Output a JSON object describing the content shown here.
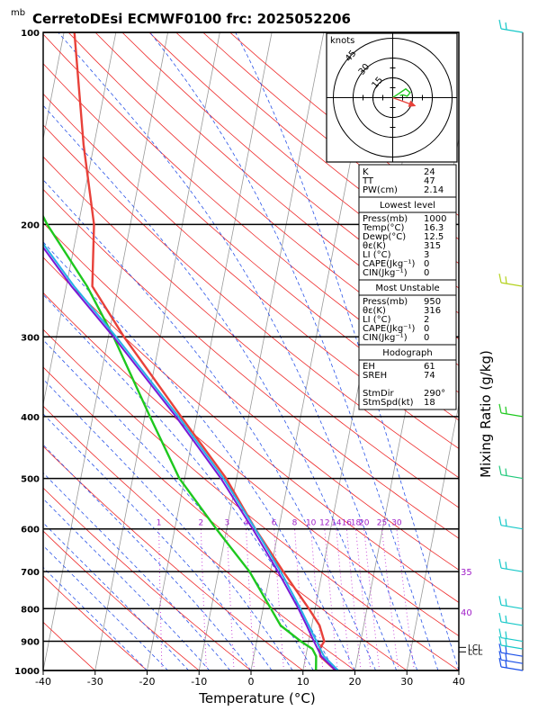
{
  "chart_data": {
    "type": "line",
    "title": "CerretoDEsi ECMWF0100  frc: 2025052206",
    "pressure_unit": "mb",
    "xlabel": "Temperature (°C)",
    "ylabel": "Mixing Ratio (g/kg)",
    "xlim": [
      -40,
      40
    ],
    "ylim": [
      1000,
      100
    ],
    "y_scale": "log",
    "x_ticks": [
      "-40",
      "-30",
      "-20",
      "-10",
      "0",
      "10",
      "20",
      "30",
      "40"
    ],
    "y_ticks": [
      "100",
      "200",
      "300",
      "400",
      "500",
      "600",
      "700",
      "800",
      "900",
      "1000"
    ],
    "mixing_ratio_labels": [
      "1",
      "2",
      "3",
      "4",
      "6",
      "8",
      "10",
      "12",
      "14",
      "16",
      "18",
      "20",
      "25",
      "30"
    ],
    "theta_e_labels": [
      "35",
      "40"
    ],
    "lcl_labels": [
      "LCL",
      "LCL"
    ],
    "series": [
      {
        "key": "temperature",
        "color": "#e8413a",
        "points": [
          [
            1000,
            16.3
          ],
          [
            950,
            12.8
          ],
          [
            925,
            12.4
          ],
          [
            900,
            13.0
          ],
          [
            850,
            11.5
          ],
          [
            800,
            8.8
          ],
          [
            700,
            2.5
          ],
          [
            600,
            -4.5
          ],
          [
            500,
            -12
          ],
          [
            400,
            -23
          ],
          [
            300,
            -37
          ],
          [
            250,
            -45
          ],
          [
            200,
            -47
          ],
          [
            150,
            -52
          ],
          [
            100,
            -58
          ]
        ]
      },
      {
        "key": "dewpoint",
        "color": "#1ec81e",
        "points": [
          [
            1000,
            12.5
          ],
          [
            950,
            12.0
          ],
          [
            925,
            11.0
          ],
          [
            900,
            8.5
          ],
          [
            850,
            4.0
          ],
          [
            800,
            1.5
          ],
          [
            700,
            -4
          ],
          [
            600,
            -12
          ],
          [
            500,
            -21
          ],
          [
            400,
            -29
          ],
          [
            300,
            -39
          ],
          [
            250,
            -46
          ],
          [
            200,
            -56
          ],
          [
            150,
            -67
          ],
          [
            100,
            -80
          ]
        ]
      },
      {
        "key": "parcel",
        "color": "#7a19d6",
        "points": [
          [
            1000,
            16.3
          ],
          [
            950,
            13.0
          ],
          [
            900,
            11.0
          ],
          [
            850,
            9.0
          ],
          [
            800,
            6.8
          ],
          [
            700,
            1.5
          ],
          [
            600,
            -5.0
          ],
          [
            500,
            -13
          ],
          [
            400,
            -24
          ],
          [
            300,
            -39
          ],
          [
            250,
            -49
          ],
          [
            200,
            -60
          ],
          [
            150,
            -74
          ],
          [
            100,
            -92
          ]
        ]
      },
      {
        "key": "virtual",
        "color": "#27b0e8",
        "points": [
          [
            1000,
            16.8
          ],
          [
            950,
            13.5
          ],
          [
            900,
            11.5
          ],
          [
            850,
            9.4
          ],
          [
            800,
            7.2
          ],
          [
            700,
            2.0
          ],
          [
            600,
            -4.5
          ],
          [
            500,
            -12.5
          ],
          [
            400,
            -23.5
          ],
          [
            300,
            -38.5
          ],
          [
            250,
            -48.5
          ],
          [
            200,
            -59.5
          ],
          [
            150,
            -73.5
          ],
          [
            100,
            -92
          ]
        ]
      }
    ],
    "hodograph": {
      "unit_label": "knots",
      "ring_labels": [
        "15",
        "30",
        "45"
      ],
      "ring_values": [
        15,
        30,
        45
      ],
      "storm_motion_dir_deg": 290,
      "storm_motion_speed_kt": 18,
      "trace_uv_kt": [
        [
          0,
          0
        ],
        [
          6,
          4
        ],
        [
          12,
          8
        ],
        [
          18,
          12
        ],
        [
          24,
          7
        ],
        [
          20,
          2
        ],
        [
          14,
          4
        ],
        [
          10,
          3
        ]
      ]
    },
    "wind_barbs": [
      {
        "p": 1000,
        "color": "#1a4fe8"
      },
      {
        "p": 975,
        "color": "#1a4fe8"
      },
      {
        "p": 950,
        "color": "#1a4fe8"
      },
      {
        "p": 925,
        "color": "#17c8c8"
      },
      {
        "p": 900,
        "color": "#17c8c8"
      },
      {
        "p": 850,
        "color": "#17c8c8"
      },
      {
        "p": 800,
        "color": "#17c8c8"
      },
      {
        "p": 700,
        "color": "#17c8c8"
      },
      {
        "p": 600,
        "color": "#17c8c8"
      },
      {
        "p": 500,
        "color": "#1ec87a"
      },
      {
        "p": 400,
        "color": "#1ec81e"
      },
      {
        "p": 250,
        "color": "#b4d21e"
      },
      {
        "p": 100,
        "color": "#17c8c8"
      }
    ]
  },
  "table": {
    "sections": [
      {
        "header": "",
        "rows": [
          [
            "K",
            "24"
          ],
          [
            "TT",
            "47"
          ],
          [
            "PW(cm)",
            "2.14"
          ]
        ]
      },
      {
        "header": "Lowest level",
        "rows": [
          [
            "Press(mb)",
            "1000"
          ],
          [
            "Temp(°C)",
            "16.3"
          ],
          [
            "Dewp(°C)",
            "12.5"
          ],
          [
            "θε(K)",
            "315"
          ],
          [
            "LI (°C)",
            "3"
          ],
          [
            "CAPE(Jkg⁻¹)",
            "0"
          ],
          [
            "CIN(Jkg⁻¹)",
            "0"
          ]
        ]
      },
      {
        "header": "Most Unstable",
        "rows": [
          [
            "Press(mb)",
            "950"
          ],
          [
            "θε(K)",
            "316"
          ],
          [
            "LI (°C)",
            "2"
          ],
          [
            "CAPE(Jkg⁻¹)",
            "0"
          ],
          [
            "CIN(Jkg⁻¹)",
            "0"
          ]
        ]
      },
      {
        "header": "Hodograph",
        "rows": [
          [
            "EH",
            "61"
          ],
          [
            "SREH",
            "74"
          ],
          [
            "",
            ""
          ],
          [
            "StmDir",
            "290°"
          ],
          [
            "StmSpd(kt)",
            "18"
          ]
        ]
      }
    ]
  }
}
